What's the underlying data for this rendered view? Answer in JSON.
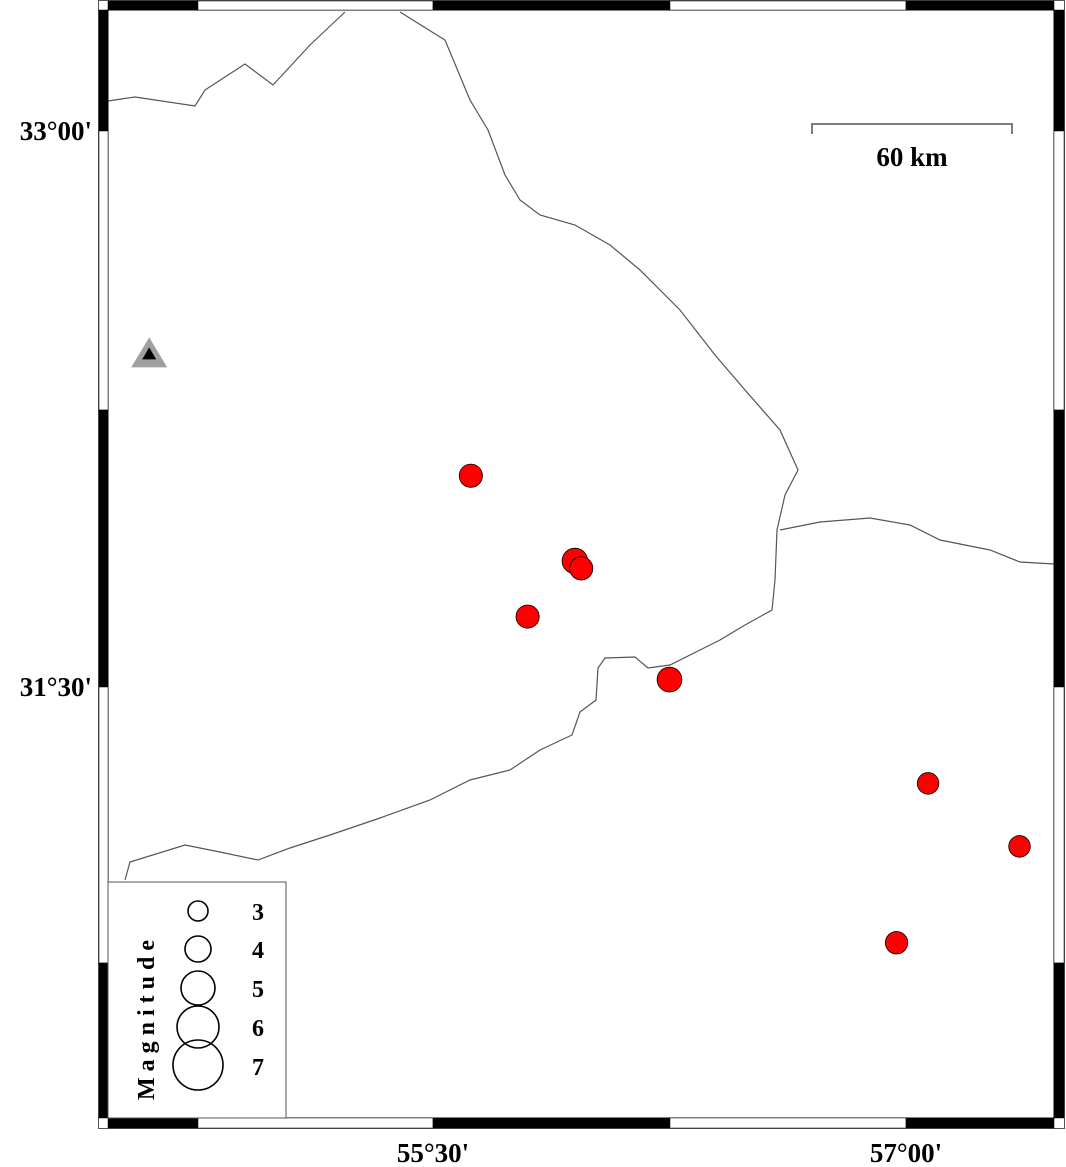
{
  "map": {
    "extent": {
      "lon": [
        54.47,
        57.47
      ],
      "lat": [
        30.34,
        33.33
      ]
    },
    "x_ticks": [
      {
        "value": 55.5,
        "label": "55°30'"
      },
      {
        "value": 57.0,
        "label": "57°00'"
      }
    ],
    "y_ticks": [
      {
        "value": 33.0,
        "label": "33°00'"
      },
      {
        "value": 31.5,
        "label": "31°30'"
      }
    ],
    "scale_bar": {
      "label": "60 km",
      "km": 60
    },
    "station": {
      "lon": 54.6,
      "lat": 32.4,
      "icon": "triangle-icon",
      "color_outer": "#a0a0a0",
      "color_inner": "#000000"
    },
    "events_color": "#ff0000",
    "events": [
      {
        "lon": 55.62,
        "lat": 32.07,
        "mag": 3.4
      },
      {
        "lon": 55.95,
        "lat": 31.84,
        "mag": 3.7
      },
      {
        "lon": 55.97,
        "lat": 31.82,
        "mag": 3.4
      },
      {
        "lon": 55.8,
        "lat": 31.69,
        "mag": 3.4
      },
      {
        "lon": 56.25,
        "lat": 31.52,
        "mag": 3.6
      },
      {
        "lon": 57.07,
        "lat": 31.24,
        "mag": 3.2
      },
      {
        "lon": 57.36,
        "lat": 31.07,
        "mag": 3.2
      },
      {
        "lon": 56.97,
        "lat": 30.81,
        "mag": 3.3
      }
    ],
    "legend": {
      "title": "Magnitude",
      "items": [
        {
          "mag": 3,
          "label": "3"
        },
        {
          "mag": 4,
          "label": "4"
        },
        {
          "mag": 5,
          "label": "5"
        },
        {
          "mag": 6,
          "label": "6"
        },
        {
          "mag": 7,
          "label": "7"
        }
      ]
    }
  }
}
